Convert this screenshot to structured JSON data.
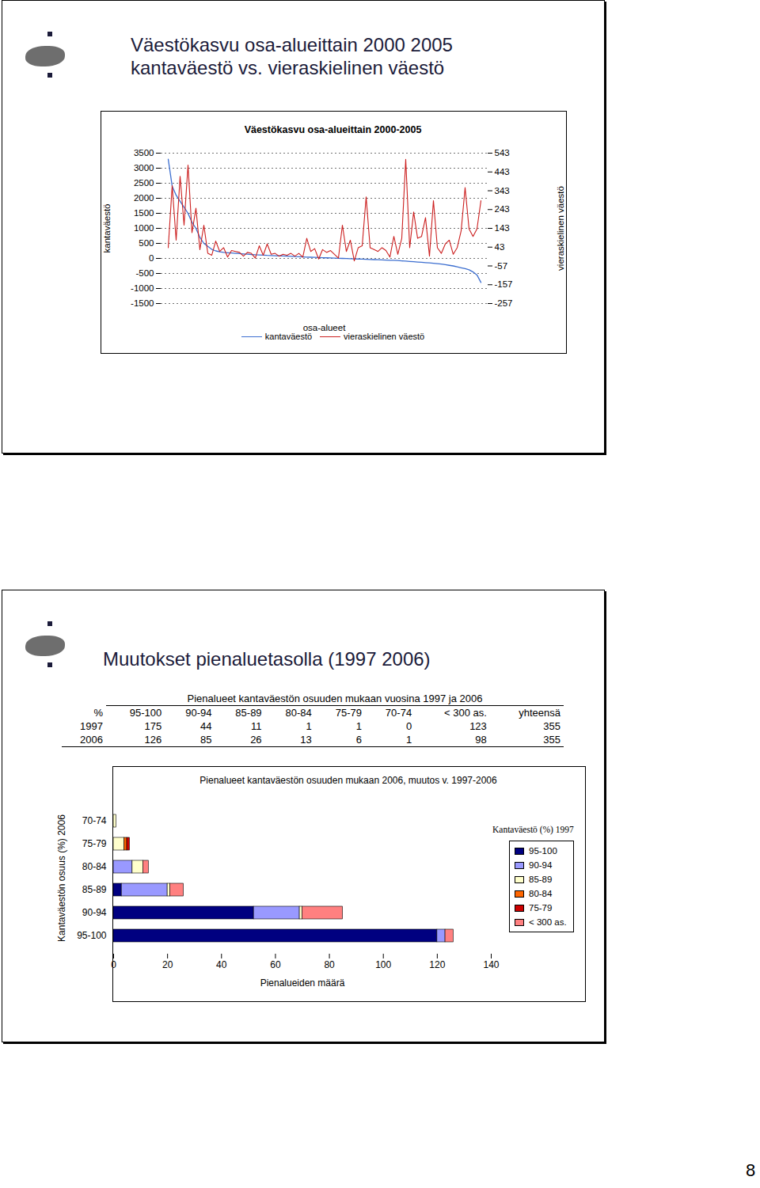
{
  "page_number": 8,
  "slides": [
    {
      "title_lines": [
        "Väestökasvu osa-alueittain 2000 2005",
        "kantaväestö vs. vieraskielinen väestö"
      ]
    },
    {
      "title_lines": [
        "Muutokset pienaluetasolla (1997 2006)"
      ]
    }
  ],
  "table": {
    "title": "Pienalueet kantaväestön osuuden mukaan vuosina 1997 ja 2006",
    "header": [
      "%",
      "95-100",
      "90-94",
      "85-89",
      "80-84",
      "75-79",
      "70-74",
      "< 300 as.",
      "yhteensä"
    ],
    "rows": [
      [
        1997,
        175,
        44,
        11,
        1,
        1,
        0,
        123,
        355
      ],
      [
        2006,
        126,
        85,
        26,
        13,
        6,
        1,
        98,
        355
      ]
    ]
  },
  "chart_data": [
    {
      "type": "line",
      "title": "Väestökasvu osa-alueittain 2000-2005",
      "x_label": "osa-alueet",
      "y_label": "kantaväestö",
      "y2_label": "vieraskielinen väestö",
      "categories": [
        null,
        null,
        null,
        null,
        null,
        null,
        null,
        null,
        null,
        null,
        null,
        null,
        null,
        null,
        null,
        null,
        null,
        null,
        null,
        null,
        null,
        null,
        null,
        null,
        null,
        null,
        null,
        null,
        null,
        null,
        null,
        null,
        null,
        null,
        null,
        null,
        null,
        null,
        null,
        null,
        null,
        null,
        null,
        null,
        null,
        null,
        null,
        null,
        null,
        null,
        null,
        null,
        null,
        null,
        null,
        null,
        null,
        null,
        null,
        null,
        null,
        null,
        null,
        null,
        null,
        null,
        null,
        null,
        null,
        null,
        null,
        null,
        null,
        null,
        null,
        null,
        null,
        null,
        null,
        null
      ],
      "series": [
        {
          "name": "kantaväestö",
          "color": "#3d6fd0",
          "values": [
            3300,
            2400,
            2100,
            1900,
            1700,
            1500,
            1200,
            1000,
            700,
            500,
            400,
            300,
            250,
            220,
            200,
            190,
            180,
            170,
            160,
            150,
            140,
            130,
            120,
            115,
            110,
            100,
            95,
            90,
            85,
            80,
            75,
            70,
            60,
            55,
            50,
            45,
            40,
            35,
            30,
            25,
            20,
            15,
            10,
            5,
            0,
            -5,
            -10,
            -15,
            -20,
            -25,
            -30,
            -35,
            -40,
            -45,
            -50,
            -55,
            -60,
            -65,
            -70,
            -80,
            -90,
            -100,
            -110,
            -120,
            -130,
            -140,
            -150,
            -160,
            -175,
            -190,
            -210,
            -230,
            -250,
            -280,
            -310,
            -340,
            -380,
            -450,
            -550,
            -800
          ]
        },
        {
          "name": "vieraskielinen väestö",
          "color": "#cc2020",
          "axis": "y2",
          "values": [
            40,
            370,
            80,
            420,
            160,
            480,
            120,
            250,
            30,
            160,
            10,
            0,
            75,
            20,
            40,
            -10,
            25,
            20,
            15,
            -5,
            15,
            10,
            -15,
            50,
            0,
            60,
            5,
            10,
            -5,
            5,
            0,
            10,
            -5,
            10,
            -10,
            90,
            20,
            35,
            -20,
            30,
            15,
            25,
            5,
            -15,
            160,
            20,
            80,
            -30,
            40,
            50,
            310,
            40,
            30,
            20,
            40,
            25,
            -10,
            100,
            5,
            90,
            510,
            40,
            230,
            90,
            100,
            200,
            -5,
            290,
            40,
            10,
            60,
            80,
            5,
            40,
            130,
            360,
            140,
            100,
            140,
            290
          ]
        }
      ],
      "ylim": [
        -1500,
        3500
      ],
      "yticks": [
        -1500,
        -1000,
        -500,
        0,
        500,
        1000,
        1500,
        2000,
        2500,
        3000,
        3500
      ],
      "y2lim": [
        -257,
        543
      ],
      "y2ticks": [
        -257,
        -157,
        -57,
        43,
        143,
        243,
        343,
        443,
        543
      ],
      "grid": true,
      "legend": "bottom",
      "tick_labels": "y"
    },
    {
      "type": "bar",
      "orientation": "horizontal",
      "stacked": true,
      "title": "Pienalueet kantaväestön osuuden mukaan 2006, muutos v. 1997-2006",
      "x_label": "Pienalueiden määrä",
      "y_label": "Kantaväestön osuus (%) 2006",
      "legend_title": "Kantaväestö (%) 1997",
      "legend": "right",
      "categories": [
        "70-74",
        "75-79",
        "80-84",
        "85-89",
        "90-94",
        "95-100"
      ],
      "series": [
        {
          "name": "95-100",
          "color": "#000080",
          "values": [
            0,
            0,
            0,
            3,
            52,
            120
          ]
        },
        {
          "name": "90-94",
          "color": "#9999ff",
          "values": [
            0,
            0,
            7,
            17,
            17,
            3
          ]
        },
        {
          "name": "85-89",
          "color": "#ffffcc",
          "values": [
            1,
            4,
            4,
            1,
            1,
            0
          ]
        },
        {
          "name": "80-84",
          "color": "#ff6600",
          "values": [
            0,
            1,
            0,
            0,
            0,
            0
          ]
        },
        {
          "name": "75-79",
          "color": "#cc0000",
          "values": [
            0,
            1,
            0,
            0,
            0,
            0
          ]
        },
        {
          "name": "< 300 as.",
          "color": "#ff8080",
          "values": [
            0,
            0,
            2,
            5,
            15,
            3
          ]
        }
      ],
      "xlim": [
        0,
        140
      ],
      "xticks": [
        0,
        20,
        40,
        60,
        80,
        100,
        120,
        140
      ]
    }
  ]
}
